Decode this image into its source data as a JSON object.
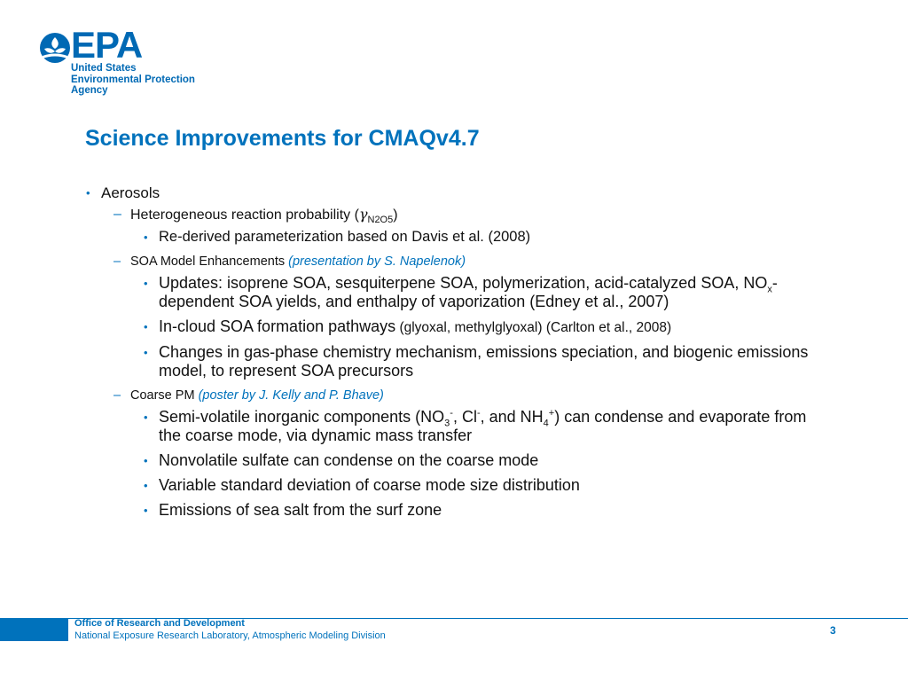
{
  "logo": {
    "letters": "EPA",
    "line1": "United States",
    "line2": "Environmental Protection",
    "line3": "Agency",
    "color": "#0069b4"
  },
  "slide": {
    "title": "Science Improvements for CMAQv4.7",
    "page_number": "3"
  },
  "bullets": {
    "aerosols": "Aerosols",
    "hetero": {
      "text_pre": "Heterogeneous reaction probability (",
      "symbol": "γ",
      "subscript": "N2O5",
      "text_post": ")",
      "sub": "Re-derived parameterization based on Davis et al. (2008)"
    },
    "soa": {
      "label": "SOA Model Enhancements",
      "presentation": "(presentation by S. Napelenok)",
      "updates_a": "Updates: isoprene SOA, sesquiterpene SOA, polymerization, acid-catalyzed SOA, NO",
      "updates_sub": "x",
      "updates_b": "-dependent SOA yields, and enthalpy of vaporization (Edney et al., 2007)",
      "incloud_a": "In-cloud SOA formation pathways",
      "incloud_b": " (glyoxal, methylglyoxal) (Carlton et al., 2008)",
      "changes": "Changes in gas-phase chemistry mechanism, emissions speciation, and biogenic emissions model, to represent SOA precursors"
    },
    "coarse": {
      "label": "Coarse PM",
      "poster": "(poster by J. Kelly and P. Bhave)",
      "semi_a": "Semi-volatile inorganic components (NO",
      "semi_sub1": "3",
      "semi_sup1": "-",
      "semi_b": ", Cl",
      "semi_sup2": "-",
      "semi_c": ", and NH",
      "semi_sub2": "4",
      "semi_sup3": "+",
      "semi_d": ") can condense and evaporate from the coarse mode, via dynamic mass transfer",
      "nonvolatile": "Nonvolatile sulfate can condense on the coarse mode",
      "variable": "Variable standard deviation of coarse mode size distribution",
      "seasalt": "Emissions of sea salt from the surf zone"
    }
  },
  "footer": {
    "office": "Office of Research and Development",
    "lab": "National Exposure Research Laboratory, Atmospheric Modeling Division",
    "accent_color": "#0072bc"
  }
}
